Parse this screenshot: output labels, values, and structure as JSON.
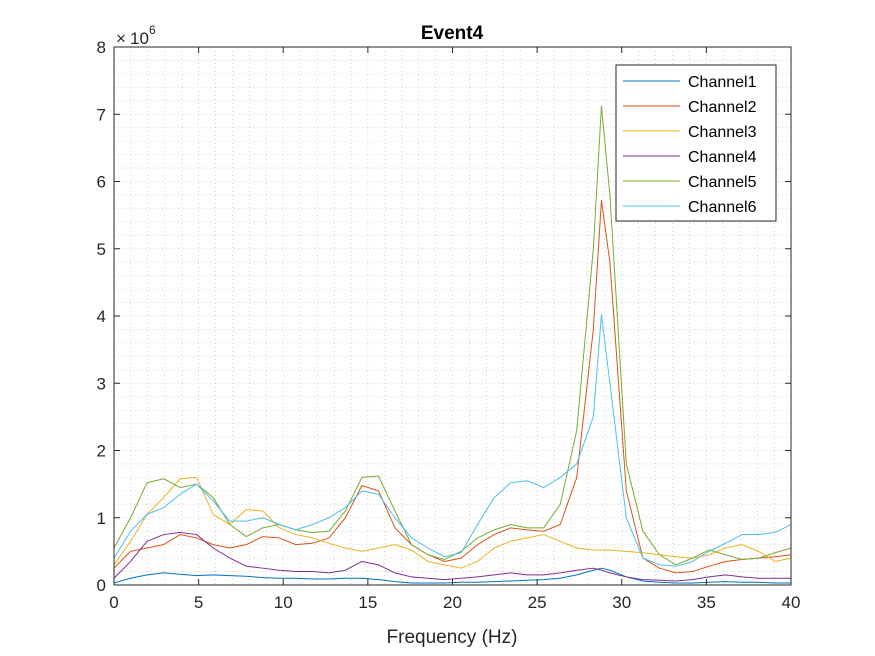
{
  "chart_data": {
    "type": "line",
    "title": "Event4",
    "xlabel": "Frequency (Hz)",
    "ylabel": "",
    "y_multiplier_base": "10",
    "y_multiplier_exponent": "6",
    "xlim": [
      0,
      40
    ],
    "ylim": [
      0,
      8
    ],
    "x_ticks": [
      0,
      5,
      10,
      15,
      20,
      25,
      30,
      35,
      40
    ],
    "y_ticks": [
      0,
      1,
      2,
      3,
      4,
      5,
      6,
      7,
      8
    ],
    "grid": "minor dotted",
    "legend_position": "top-right",
    "x": [
      0,
      0.98,
      1.95,
      2.93,
      3.91,
      4.88,
      5.86,
      6.84,
      7.81,
      8.79,
      9.77,
      10.74,
      11.72,
      12.7,
      13.67,
      14.65,
      15.63,
      16.6,
      17.58,
      18.55,
      19.53,
      20.51,
      21.48,
      22.46,
      23.44,
      24.41,
      25.39,
      26.37,
      27.34,
      28.32,
      28.8,
      29.3,
      30.27,
      31.25,
      32.23,
      33.2,
      34.18,
      35.16,
      36.13,
      37.11,
      38.09,
      39.06,
      40
    ],
    "series": [
      {
        "name": "Channel1",
        "color": "#0072BD",
        "values": [
          0.03,
          0.1,
          0.15,
          0.18,
          0.16,
          0.14,
          0.15,
          0.14,
          0.13,
          0.11,
          0.1,
          0.1,
          0.09,
          0.09,
          0.1,
          0.1,
          0.08,
          0.05,
          0.03,
          0.03,
          0.03,
          0.04,
          0.04,
          0.05,
          0.06,
          0.07,
          0.08,
          0.1,
          0.15,
          0.22,
          0.25,
          0.22,
          0.12,
          0.06,
          0.04,
          0.03,
          0.03,
          0.04,
          0.05,
          0.04,
          0.04,
          0.03,
          0.03
        ]
      },
      {
        "name": "Channel2",
        "color": "#D95319",
        "values": [
          0.25,
          0.5,
          0.55,
          0.6,
          0.75,
          0.7,
          0.6,
          0.55,
          0.6,
          0.72,
          0.7,
          0.6,
          0.62,
          0.7,
          1.0,
          1.48,
          1.4,
          0.85,
          0.6,
          0.45,
          0.35,
          0.4,
          0.6,
          0.75,
          0.85,
          0.82,
          0.8,
          0.9,
          1.6,
          3.8,
          5.72,
          4.8,
          1.4,
          0.4,
          0.25,
          0.18,
          0.2,
          0.28,
          0.35,
          0.38,
          0.4,
          0.42,
          0.45
        ]
      },
      {
        "name": "Channel3",
        "color": "#EDB120",
        "values": [
          0.3,
          0.65,
          1.05,
          1.3,
          1.58,
          1.6,
          1.05,
          0.9,
          1.12,
          1.1,
          0.85,
          0.75,
          0.7,
          0.62,
          0.55,
          0.5,
          0.55,
          0.6,
          0.52,
          0.35,
          0.3,
          0.25,
          0.35,
          0.55,
          0.65,
          0.7,
          0.75,
          0.65,
          0.55,
          0.52,
          0.52,
          0.52,
          0.5,
          0.48,
          0.45,
          0.42,
          0.4,
          0.45,
          0.55,
          0.6,
          0.5,
          0.35,
          0.4
        ]
      },
      {
        "name": "Channel4",
        "color": "#7E2F8E",
        "values": [
          0.1,
          0.35,
          0.65,
          0.75,
          0.78,
          0.75,
          0.55,
          0.4,
          0.28,
          0.25,
          0.22,
          0.2,
          0.2,
          0.18,
          0.22,
          0.35,
          0.3,
          0.18,
          0.12,
          0.1,
          0.08,
          0.1,
          0.12,
          0.15,
          0.18,
          0.15,
          0.15,
          0.18,
          0.22,
          0.25,
          0.22,
          0.18,
          0.12,
          0.08,
          0.07,
          0.06,
          0.08,
          0.12,
          0.15,
          0.12,
          0.1,
          0.1,
          0.1
        ]
      },
      {
        "name": "Channel5",
        "color": "#77AC30",
        "values": [
          0.55,
          1.0,
          1.52,
          1.58,
          1.45,
          1.5,
          1.3,
          0.9,
          0.72,
          0.85,
          0.9,
          0.82,
          0.78,
          0.8,
          1.1,
          1.6,
          1.62,
          1.1,
          0.6,
          0.45,
          0.38,
          0.5,
          0.7,
          0.82,
          0.9,
          0.85,
          0.85,
          1.2,
          2.3,
          5.0,
          7.12,
          5.8,
          1.8,
          0.8,
          0.45,
          0.3,
          0.4,
          0.52,
          0.45,
          0.38,
          0.4,
          0.48,
          0.55
        ]
      },
      {
        "name": "Channel6",
        "color": "#4DBEEE",
        "values": [
          0.4,
          0.8,
          1.05,
          1.15,
          1.35,
          1.5,
          1.25,
          0.95,
          0.95,
          1.0,
          0.9,
          0.82,
          0.9,
          1.0,
          1.15,
          1.4,
          1.35,
          1.0,
          0.7,
          0.55,
          0.42,
          0.48,
          0.9,
          1.3,
          1.52,
          1.55,
          1.45,
          1.6,
          1.8,
          2.5,
          4.02,
          3.0,
          1.0,
          0.4,
          0.3,
          0.28,
          0.35,
          0.5,
          0.62,
          0.75,
          0.75,
          0.78,
          0.9
        ]
      }
    ]
  }
}
